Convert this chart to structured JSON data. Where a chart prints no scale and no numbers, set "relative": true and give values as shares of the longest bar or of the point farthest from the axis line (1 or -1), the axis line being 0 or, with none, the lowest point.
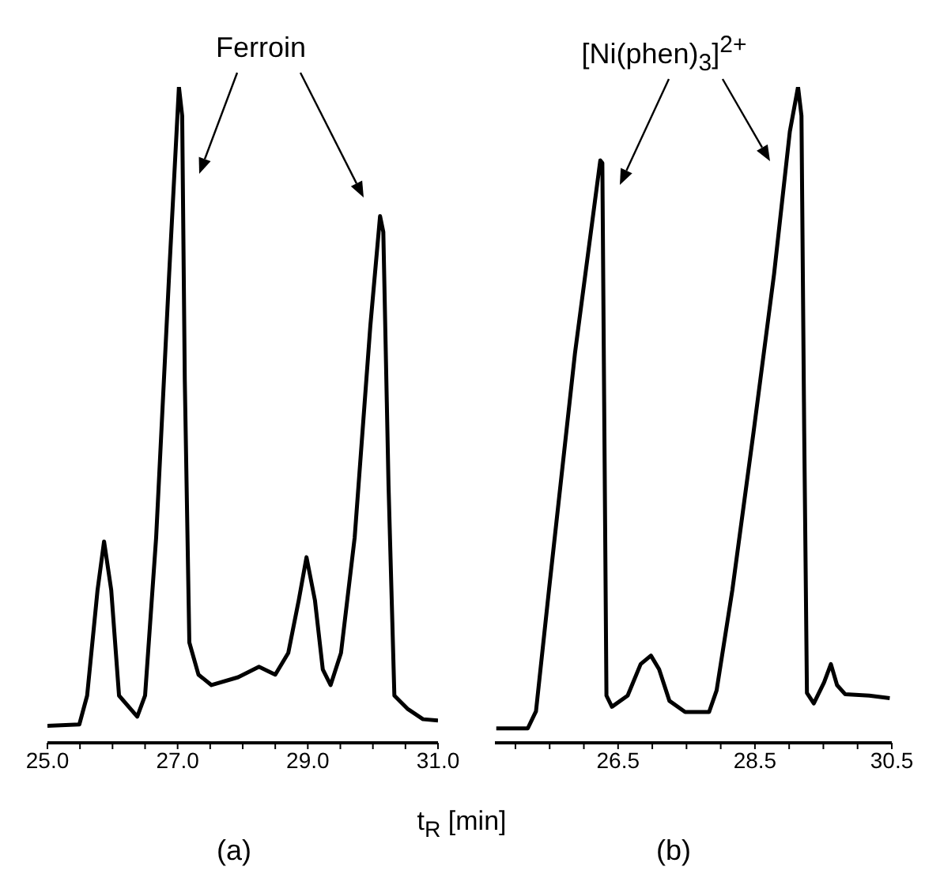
{
  "chart_data": [
    {
      "type": "line",
      "relative": true,
      "tick_labels": "x",
      "xlabel": "t$_{R}$ [min]",
      "annotations": [
        "Ferroin",
        "(a)"
      ],
      "xlim": [
        25.0,
        31.0
      ],
      "xticks": [
        {
          "value": 25.0,
          "label": "25.0"
        },
        {
          "value": 25.5,
          "label": null
        },
        {
          "value": 26.0,
          "label": null
        },
        {
          "value": 26.5,
          "label": null
        },
        {
          "value": 27.0,
          "label": "27.0"
        },
        {
          "value": 27.5,
          "label": null
        },
        {
          "value": 28.0,
          "label": null
        },
        {
          "value": 28.5,
          "label": null
        },
        {
          "value": 29.0,
          "label": "29.0"
        },
        {
          "value": 29.5,
          "label": null
        },
        {
          "value": 30.0,
          "label": null
        },
        {
          "value": 30.5,
          "label": null
        },
        {
          "value": 31.0,
          "label": "31.0"
        }
      ],
      "series": [
        {
          "color": "#000000",
          "x": [
            25.0,
            25.49,
            25.61,
            25.77,
            25.87,
            25.98,
            26.1,
            26.38,
            26.5,
            26.67,
            26.87,
            27.02,
            27.07,
            27.11,
            27.18,
            27.32,
            27.52,
            27.93,
            28.25,
            28.5,
            28.7,
            28.86,
            28.98,
            29.11,
            29.23,
            29.35,
            29.51,
            29.72,
            29.96,
            30.11,
            30.16,
            30.24,
            30.33,
            30.53,
            30.77,
            31.0
          ],
          "values": [
            0.026,
            0.028,
            0.072,
            0.233,
            0.307,
            0.233,
            0.072,
            0.04,
            0.072,
            0.313,
            0.715,
            1.0,
            0.956,
            0.554,
            0.153,
            0.104,
            0.088,
            0.1,
            0.116,
            0.104,
            0.137,
            0.217,
            0.283,
            0.217,
            0.112,
            0.088,
            0.137,
            0.313,
            0.635,
            0.803,
            0.779,
            0.393,
            0.072,
            0.052,
            0.036,
            0.034
          ]
        }
      ]
    },
    {
      "type": "line",
      "relative": true,
      "tick_labels": "x",
      "annotations": [
        "[Ni(phen)$_{3}$]$^{2+}$",
        "(b)"
      ],
      "xlim": [
        24.7,
        30.5
      ],
      "xticks": [
        {
          "value": 25.0,
          "label": null
        },
        {
          "value": 25.5,
          "label": null
        },
        {
          "value": 26.0,
          "label": null
        },
        {
          "value": 26.5,
          "label": "26.5"
        },
        {
          "value": 27.0,
          "label": null
        },
        {
          "value": 27.5,
          "label": null
        },
        {
          "value": 28.0,
          "label": null
        },
        {
          "value": 28.5,
          "label": "28.5"
        },
        {
          "value": 29.0,
          "label": null
        },
        {
          "value": 29.5,
          "label": null
        },
        {
          "value": 30.0,
          "label": null
        },
        {
          "value": 30.5,
          "label": "30.5"
        }
      ],
      "series": [
        {
          "color": "#000000",
          "x": [
            24.72,
            25.18,
            25.3,
            25.49,
            25.87,
            26.24,
            26.27,
            26.3,
            26.33,
            26.41,
            26.64,
            26.83,
            26.98,
            27.1,
            27.25,
            27.48,
            27.83,
            27.94,
            28.17,
            28.48,
            28.78,
            29.01,
            29.13,
            29.18,
            29.22,
            29.26,
            29.36,
            29.51,
            29.61,
            29.7,
            29.82,
            30.17,
            30.47
          ],
          "values": [
            0.022,
            0.022,
            0.048,
            0.233,
            0.594,
            0.888,
            0.884,
            0.474,
            0.072,
            0.055,
            0.072,
            0.12,
            0.133,
            0.112,
            0.064,
            0.047,
            0.047,
            0.08,
            0.233,
            0.474,
            0.715,
            0.932,
            1.0,
            0.956,
            0.474,
            0.076,
            0.06,
            0.092,
            0.12,
            0.088,
            0.074,
            0.072,
            0.068
          ]
        }
      ]
    }
  ]
}
